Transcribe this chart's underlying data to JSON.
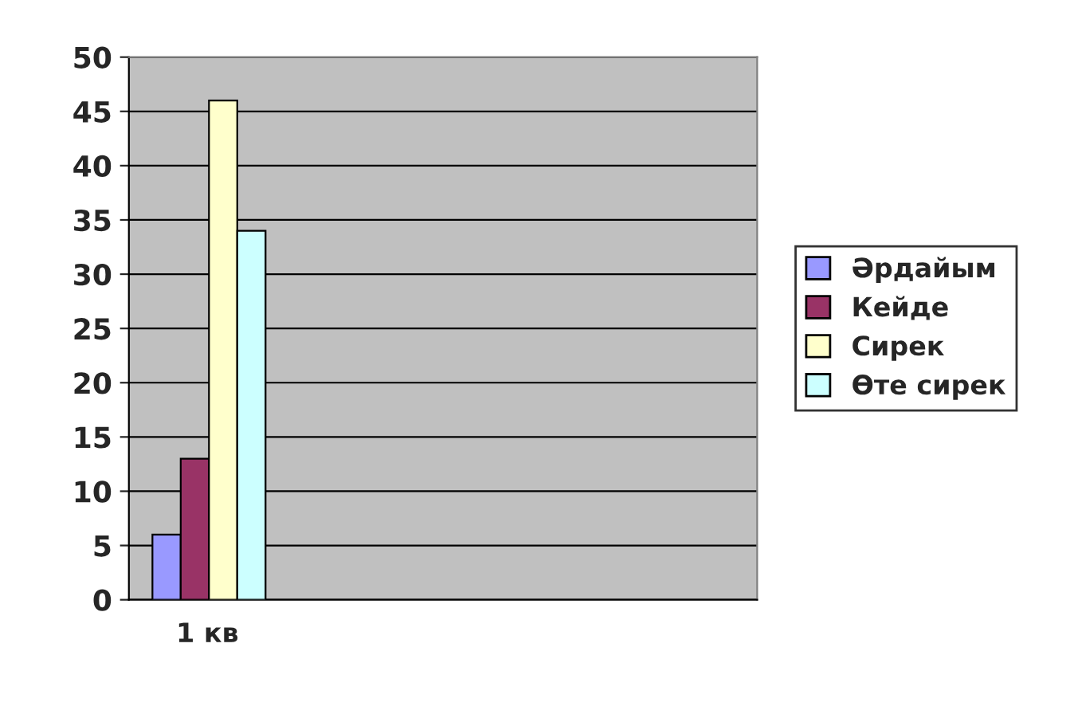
{
  "chart_data": {
    "type": "bar",
    "categories": [
      "1 кв",
      null,
      null,
      null
    ],
    "series": [
      {
        "name": "Әрдайым",
        "color": "#9999ff",
        "values": [
          6,
          null,
          null,
          null
        ]
      },
      {
        "name": "Кейде",
        "color": "#993366",
        "values": [
          13,
          null,
          null,
          null
        ]
      },
      {
        "name": "Сирек",
        "color": "#ffffcc",
        "values": [
          46,
          null,
          null,
          null
        ]
      },
      {
        "name": "Өте сирек",
        "color": "#ccffff",
        "values": [
          34,
          null,
          null,
          null
        ]
      }
    ],
    "ylim": [
      0,
      50
    ],
    "yticks": [
      0,
      5,
      10,
      15,
      20,
      25,
      30,
      35,
      40,
      45,
      50
    ],
    "grid": "y",
    "legend": "right"
  }
}
